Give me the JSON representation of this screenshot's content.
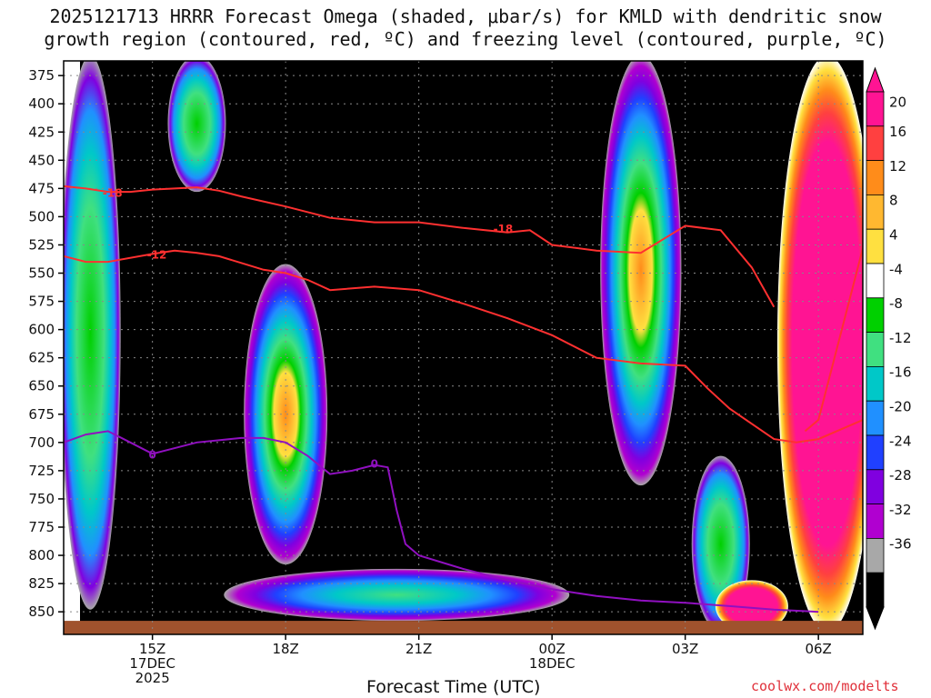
{
  "title_line1": "2025121713 HRRR Forecast Omega (shaded, μbar/s) for KMLD with dendritic snow",
  "title_line2": "growth region (contoured, red, ºC) and freezing level (contoured, purple, ºC)",
  "xlabel": "Forecast Time (UTC)",
  "credit": "coolwx.com/modelts",
  "chart_data": {
    "type": "heatmap",
    "title": "2025121713 HRRR Forecast Omega (shaded, μbar/s) for KMLD with dendritic snow growth region (contoured, red, ºC) and freezing level (contoured, purple, ºC)",
    "xlabel": "Forecast Time (UTC)",
    "ylabel": "",
    "x_range_hours": [
      13,
      31
    ],
    "y_range_hPa": [
      362,
      870
    ],
    "y_scale": "linear-inverted",
    "y_ticks": [
      375,
      400,
      425,
      450,
      475,
      500,
      525,
      550,
      575,
      600,
      625,
      650,
      675,
      700,
      725,
      750,
      775,
      800,
      825,
      850
    ],
    "x_ticks": [
      {
        "hour": 15,
        "lines": [
          "15Z",
          "17DEC",
          "2025"
        ]
      },
      {
        "hour": 18,
        "lines": [
          "18Z"
        ]
      },
      {
        "hour": 21,
        "lines": [
          "21Z"
        ]
      },
      {
        "hour": 24,
        "lines": [
          "00Z",
          "18DEC"
        ]
      },
      {
        "hour": 27,
        "lines": [
          "03Z"
        ]
      },
      {
        "hour": 30,
        "lines": [
          "06Z"
        ]
      }
    ],
    "grid": "dotted",
    "colorbar": {
      "labels": [
        "20",
        "16",
        "12",
        "8",
        "4",
        "-4",
        "-8",
        "-12",
        "-16",
        "-20",
        "-24",
        "-28",
        "-32",
        "-36"
      ],
      "colors": [
        "#ff1493",
        "#ff4040",
        "#ff8c1a",
        "#ffb830",
        "#ffe040",
        "#ffffff",
        "#00d000",
        "#40e080",
        "#00c8c8",
        "#2090ff",
        "#2040ff",
        "#8000e0",
        "#b000d0",
        "#a8a8a8",
        "#000000"
      ],
      "position": "right"
    },
    "omega_regions": [
      {
        "hour": 13.6,
        "p": [
          365,
          840
        ],
        "sign": "up",
        "strength": 0.55
      },
      {
        "hour": 16.0,
        "p": [
          365,
          470
        ],
        "sign": "up",
        "strength": 0.5
      },
      {
        "hour": 18.0,
        "p": [
          550,
          800
        ],
        "sign": "up",
        "strength": 1.0
      },
      {
        "hour": 26.0,
        "p": [
          365,
          730
        ],
        "sign": "up",
        "strength": 0.95
      },
      {
        "hour": 20.5,
        "p": [
          820,
          850
        ],
        "sign": "up",
        "strength": 0.6
      },
      {
        "hour": 27.8,
        "p": [
          720,
          860
        ],
        "sign": "up",
        "strength": 0.5
      },
      {
        "hour": 28.5,
        "p": [
          830,
          860
        ],
        "sign": "down",
        "strength": 0.7
      },
      {
        "hour": 30.2,
        "p": [
          365,
          860
        ],
        "sign": "down",
        "strength": 1.0
      }
    ],
    "series": [
      {
        "name": "-18",
        "color": "#ff3030",
        "label_hour": 14.1,
        "label_p": 479,
        "x": [
          13.0,
          13.5,
          14.0,
          14.5,
          15.0,
          16.0,
          16.5,
          17.0,
          18.0,
          19.0,
          20.0,
          21.0,
          22.0,
          23.0,
          23.5,
          24.0,
          25.0,
          26.0,
          26.5,
          27.0,
          27.8,
          28.5,
          29.0
        ],
        "y": [
          473,
          475,
          478,
          478,
          476,
          474,
          477,
          482,
          491,
          501,
          505,
          505,
          510,
          514,
          512,
          525,
          530,
          532,
          520,
          508,
          512,
          545,
          580
        ]
      },
      {
        "name": "-18",
        "color": "#ff3030",
        "label_hour": 22.9,
        "label_p": 511,
        "x": [],
        "y": []
      },
      {
        "name": "-12",
        "color": "#ff3030",
        "label_hour": 15.1,
        "label_p": 534,
        "x": [
          13.0,
          13.5,
          14.0,
          15.0,
          15.5,
          16.0,
          16.5,
          17.0,
          17.5,
          18.0,
          18.5,
          19.0,
          20.0,
          21.0,
          22.0,
          23.0,
          24.0,
          25.0,
          26.0,
          27.0,
          27.5,
          28.0,
          29.0,
          29.5,
          30.0,
          31.0
        ],
        "y": [
          535,
          540,
          540,
          533,
          530,
          532,
          535,
          541,
          547,
          550,
          556,
          565,
          562,
          565,
          577,
          590,
          605,
          625,
          630,
          632,
          652,
          670,
          697,
          700,
          697,
          680
        ]
      },
      {
        "name": "-12",
        "color": "#ff3030",
        "label_hour": 0,
        "label_p": 0,
        "x": [
          29.7,
          30.0,
          31.0
        ],
        "y": [
          690,
          680,
          528
        ]
      },
      {
        "name": "0",
        "color": "#9010c0",
        "label_hour": 15.0,
        "label_p": 711,
        "x": [
          13.0,
          13.5,
          14.0,
          14.5,
          15.0,
          16.0,
          17.0,
          17.5,
          18.0,
          18.5,
          19.0,
          19.5,
          20.0,
          20.3,
          20.5,
          20.7,
          21.0,
          22.0,
          23.0,
          24.0,
          25.0,
          26.0,
          27.0,
          28.0,
          29.0,
          30.0
        ],
        "y": [
          700,
          693,
          690,
          700,
          710,
          700,
          696,
          696,
          700,
          712,
          728,
          725,
          720,
          722,
          760,
          790,
          800,
          812,
          822,
          830,
          836,
          840,
          842,
          845,
          848,
          850
        ]
      }
    ],
    "extra_labels": [
      {
        "text": "0",
        "hour": 20.0,
        "p": 719,
        "color": "#9010c0"
      }
    ]
  }
}
